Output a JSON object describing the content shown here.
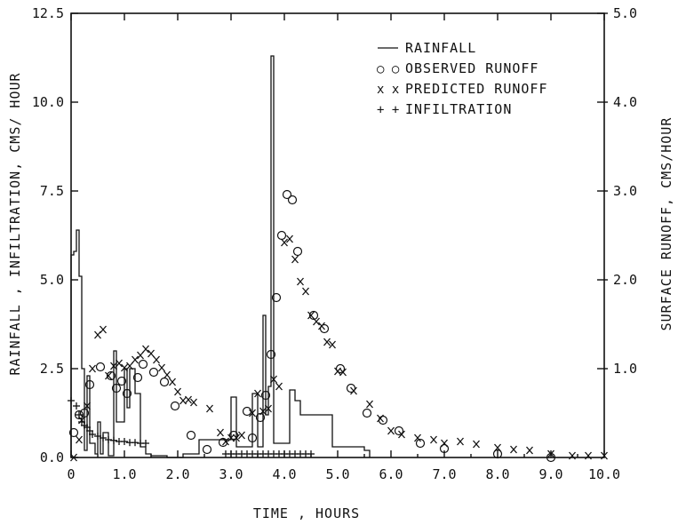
{
  "chart_data": {
    "type": "line",
    "xlabel": "TIME , HOURS",
    "ylabel_left": "RAINFALL , INFILTRATION, CMS/ HOUR",
    "ylabel_right": "SURFACE RUNOFF, CMS/HOUR",
    "xlim": [
      0,
      10
    ],
    "ylim_left": [
      0,
      12.5
    ],
    "ylim_right": [
      0,
      5
    ],
    "x_ticks": [
      "0",
      "1.0",
      "2.0",
      "3.0",
      "4.0",
      "5.0",
      "6.0",
      "7.0",
      "8.0",
      "9.0",
      "10.0"
    ],
    "y_left_ticks": [
      "0.0",
      "2.5",
      "5.0",
      "7.5",
      "10.0",
      "12.5"
    ],
    "y_right_ticks": [
      "1.0",
      "2.0",
      "3.0",
      "4.0",
      "5.0"
    ],
    "legend": {
      "position": "top-right",
      "entries": [
        {
          "series": "rainfall",
          "glyph": "—",
          "label": "RAINFALL"
        },
        {
          "series": "observed",
          "glyph": "○ ○",
          "label": "OBSERVED RUNOFF"
        },
        {
          "series": "predicted",
          "glyph": "x x",
          "label": "PREDICTED RUNOFF"
        },
        {
          "series": "infiltration",
          "glyph": "+ +",
          "label": "INFILTRATION"
        }
      ]
    },
    "series": [
      {
        "key": "rainfall",
        "axis": "left",
        "style": "step",
        "x": [
          0.0,
          0.05,
          0.1,
          0.15,
          0.2,
          0.25,
          0.3,
          0.35,
          0.45,
          0.5,
          0.55,
          0.6,
          0.7,
          0.8,
          0.85,
          0.9,
          1.0,
          1.05,
          1.1,
          1.2,
          1.3,
          1.35,
          1.4,
          1.5,
          1.8,
          2.1,
          2.4,
          2.5,
          2.9,
          3.0,
          3.1,
          3.2,
          3.4,
          3.5,
          3.6,
          3.65,
          3.7,
          3.75,
          3.8,
          3.85,
          4.0,
          4.1,
          4.2,
          4.3,
          4.5,
          4.9,
          5.0,
          5.5,
          5.6
        ],
        "y": [
          5.7,
          5.8,
          6.4,
          5.1,
          2.5,
          0.2,
          2.3,
          0.4,
          0.1,
          1.0,
          0.1,
          0.7,
          0.05,
          3.0,
          1.0,
          1.0,
          2.5,
          1.4,
          2.5,
          1.8,
          0.3,
          0.3,
          0.1,
          0.05,
          0.0,
          0.1,
          0.5,
          0.5,
          0.5,
          1.7,
          0.3,
          0.3,
          1.8,
          0.3,
          4.0,
          1.2,
          2.0,
          11.3,
          0.4,
          0.4,
          0.4,
          1.9,
          1.6,
          1.2,
          1.2,
          0.3,
          0.3,
          0.2,
          0.0
        ]
      },
      {
        "key": "observed",
        "axis": "right",
        "style": "circle",
        "x": [
          0.05,
          0.15,
          0.25,
          0.35,
          0.55,
          0.75,
          0.85,
          0.95,
          1.05,
          1.25,
          1.35,
          1.55,
          1.75,
          1.95,
          2.25,
          2.55,
          2.85,
          3.05,
          3.3,
          3.4,
          3.55,
          3.65,
          3.75,
          3.85,
          3.95,
          4.05,
          4.15,
          4.25,
          4.55,
          4.75,
          5.05,
          5.25,
          5.55,
          5.85,
          6.15,
          6.55,
          7.0,
          8.0,
          9.0
        ],
        "y": [
          0.28,
          0.48,
          0.5,
          0.82,
          1.02,
          0.92,
          0.78,
          0.86,
          0.72,
          0.9,
          1.05,
          0.96,
          0.85,
          0.58,
          0.25,
          0.09,
          0.17,
          0.25,
          0.52,
          0.22,
          0.45,
          0.7,
          1.16,
          1.8,
          2.5,
          2.96,
          2.9,
          2.32,
          1.6,
          1.45,
          1.0,
          0.78,
          0.5,
          0.42,
          0.3,
          0.16,
          0.1,
          0.04,
          0.0
        ]
      },
      {
        "key": "predicted",
        "axis": "right",
        "style": "x",
        "x": [
          0.05,
          0.15,
          0.2,
          0.3,
          0.4,
          0.5,
          0.6,
          0.7,
          0.8,
          0.9,
          1.0,
          1.1,
          1.2,
          1.3,
          1.4,
          1.5,
          1.6,
          1.7,
          1.8,
          1.9,
          2.0,
          2.1,
          2.2,
          2.3,
          2.6,
          2.8,
          2.9,
          3.0,
          3.1,
          3.2,
          3.4,
          3.5,
          3.6,
          3.7,
          3.8,
          3.9,
          4.0,
          4.1,
          4.2,
          4.3,
          4.4,
          4.5,
          4.6,
          4.7,
          4.8,
          4.9,
          5.0,
          5.1,
          5.3,
          5.6,
          5.8,
          6.0,
          6.2,
          6.5,
          6.8,
          7.0,
          7.3,
          7.6,
          8.0,
          8.3,
          8.6,
          9.0,
          9.4,
          9.7,
          10.0
        ],
        "y": [
          0.0,
          0.2,
          0.42,
          0.58,
          1.0,
          1.38,
          1.44,
          0.92,
          1.03,
          1.06,
          1.01,
          1.03,
          1.1,
          1.15,
          1.22,
          1.17,
          1.1,
          1.01,
          0.93,
          0.85,
          0.74,
          0.64,
          0.65,
          0.62,
          0.55,
          0.28,
          0.18,
          0.22,
          0.22,
          0.25,
          0.5,
          0.72,
          0.52,
          0.55,
          0.88,
          0.8,
          2.42,
          2.46,
          2.23,
          1.98,
          1.87,
          1.6,
          1.53,
          1.48,
          1.3,
          1.27,
          0.97,
          0.96,
          0.75,
          0.6,
          0.44,
          0.3,
          0.26,
          0.22,
          0.2,
          0.16,
          0.18,
          0.15,
          0.11,
          0.09,
          0.08,
          0.04,
          0.02,
          0.02,
          0.02
        ]
      },
      {
        "key": "infiltration",
        "axis": "left",
        "style": "plus",
        "x": [
          0.0,
          0.1,
          0.15,
          0.2,
          0.25,
          0.3,
          0.35,
          0.4,
          0.5,
          0.6,
          0.7,
          0.8,
          0.9,
          1.0,
          1.1,
          1.2,
          1.3,
          1.4,
          2.9,
          3.0,
          3.1,
          3.2,
          3.3,
          3.4,
          3.5,
          3.6,
          3.7,
          3.8,
          3.9,
          4.0,
          4.1,
          4.2,
          4.3,
          4.4,
          4.5
        ],
        "y": [
          1.6,
          1.45,
          1.2,
          1.0,
          0.9,
          0.85,
          0.75,
          0.65,
          0.6,
          0.55,
          0.5,
          0.48,
          0.45,
          0.45,
          0.42,
          0.42,
          0.4,
          0.4,
          0.1,
          0.1,
          0.1,
          0.1,
          0.1,
          0.1,
          0.1,
          0.1,
          0.1,
          0.1,
          0.1,
          0.1,
          0.1,
          0.1,
          0.1,
          0.1,
          0.1
        ]
      }
    ]
  }
}
